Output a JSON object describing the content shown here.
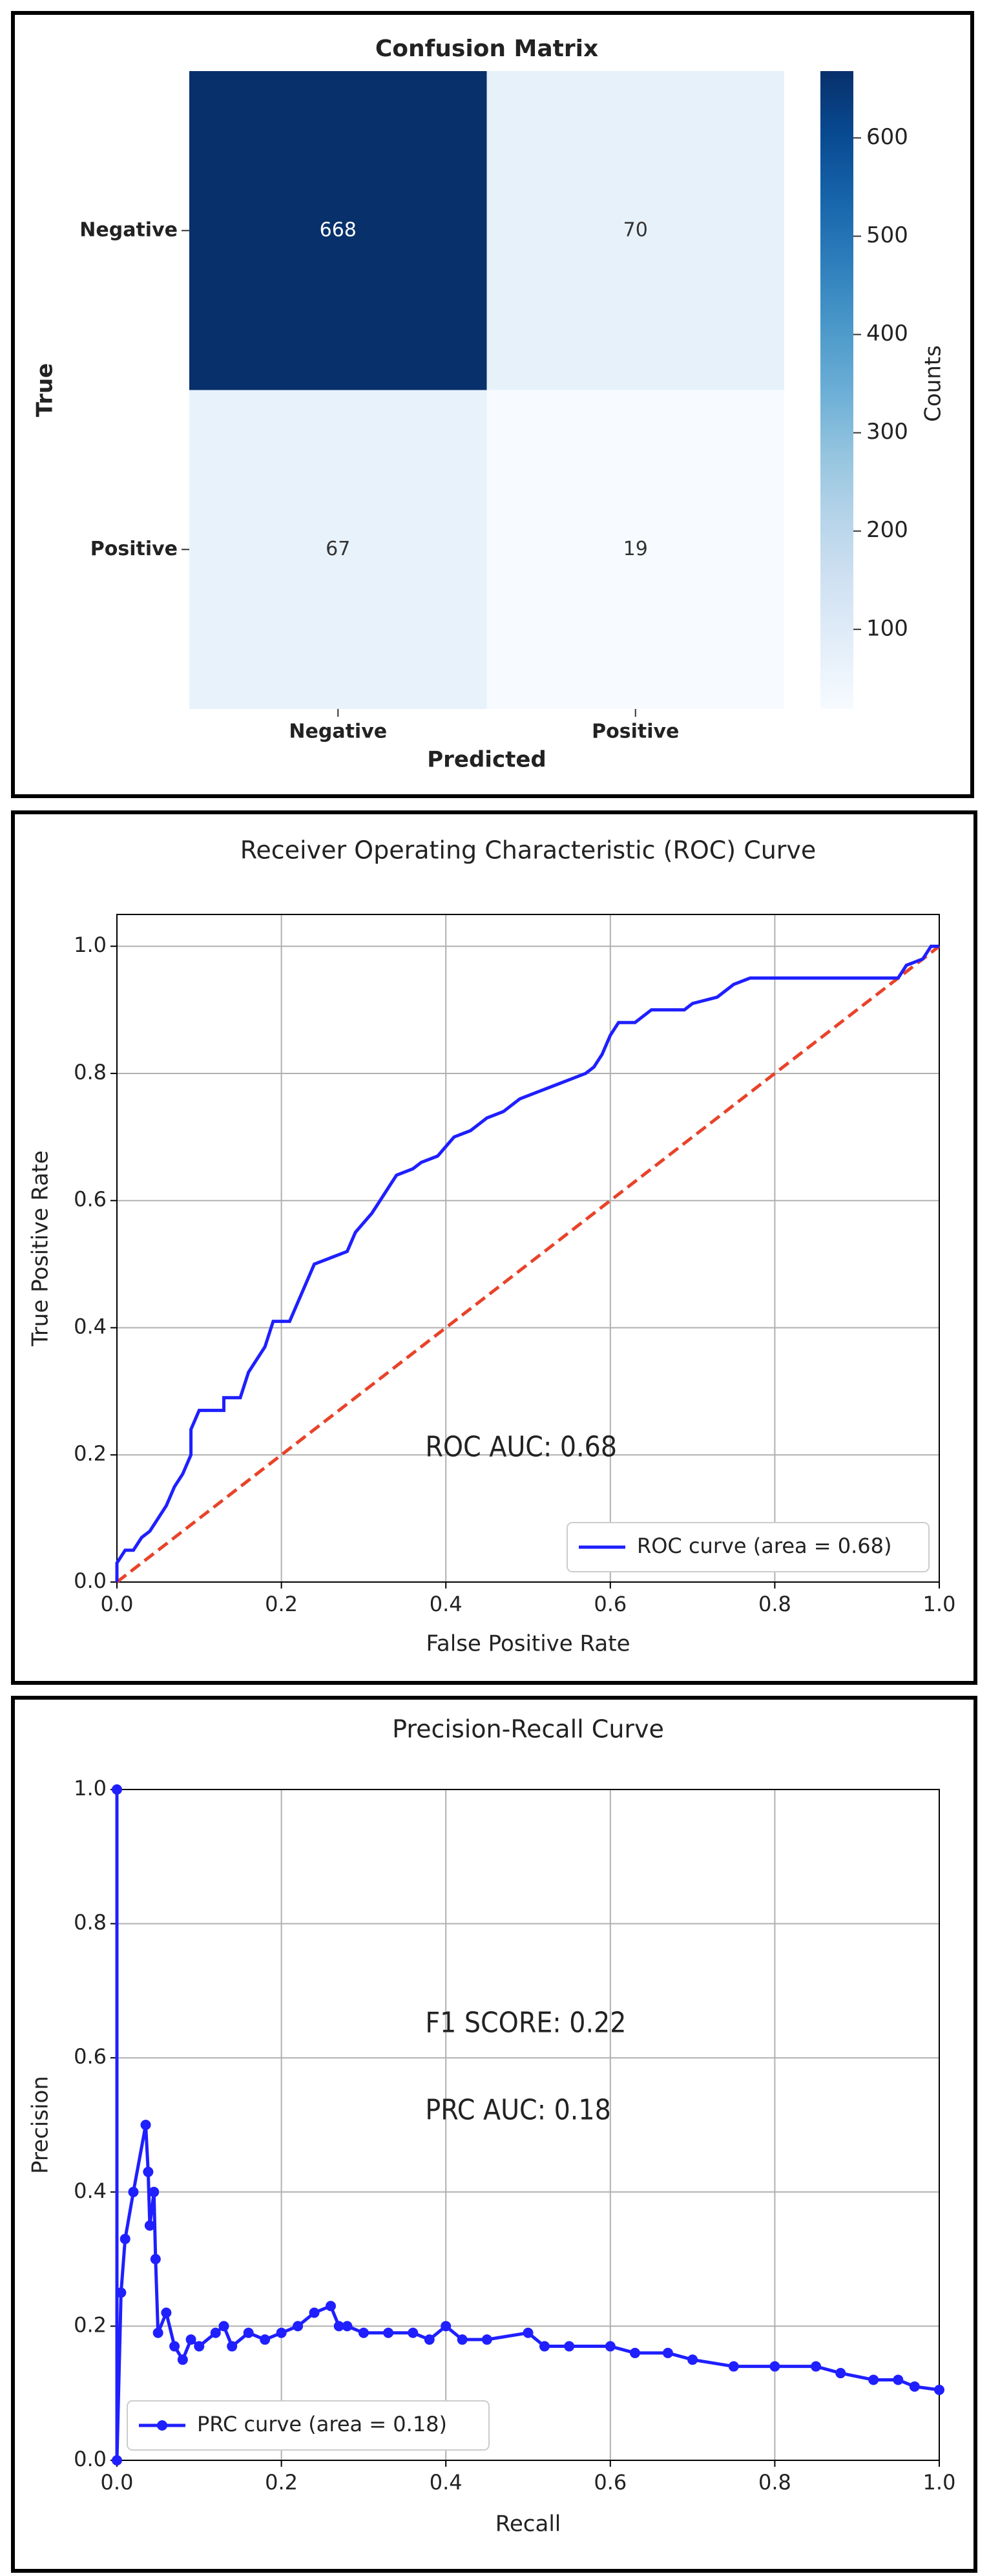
{
  "chart_data": [
    {
      "type": "heatmap",
      "title": "Confusion Matrix",
      "x_label": "Predicted",
      "y_label": "True",
      "x_categories": [
        "Negative",
        "Positive"
      ],
      "y_categories": [
        "Negative",
        "Positive"
      ],
      "values": [
        [
          668,
          70
        ],
        [
          67,
          19
        ]
      ],
      "colormap": "Blues",
      "colorbar_label": "Counts",
      "clim": [
        19,
        668
      ],
      "colorbar_ticks": [
        100,
        200,
        300,
        400,
        500,
        600
      ]
    },
    {
      "type": "line",
      "title": "Receiver Operating Characteristic (ROC) Curve",
      "x_label": "False Positive Rate",
      "y_label": "True Positive Rate",
      "xlim": [
        0,
        1
      ],
      "ylim": [
        0,
        1.05
      ],
      "xticks": [
        {
          "value": 0,
          "label": "0.0"
        },
        0.2,
        0.4,
        0.6,
        0.8,
        {
          "value": 1,
          "label": "1.0"
        }
      ],
      "yticks": [
        {
          "value": 0,
          "label": "0.0"
        },
        0.2,
        0.4,
        0.6,
        0.8,
        {
          "value": 1,
          "label": "1.0"
        }
      ],
      "grid": true,
      "legend": "lower right",
      "markers": false,
      "series": [
        {
          "name": "ROC curve (area = 0.68)",
          "color": "#1f1fff",
          "x": [
            0,
            0,
            0.01,
            0.02,
            0.03,
            0.04,
            0.05,
            0.06,
            0.07,
            0.08,
            0.09,
            0.09,
            0.1,
            0.13,
            0.13,
            0.15,
            0.16,
            0.17,
            0.18,
            0.19,
            0.21,
            0.22,
            0.23,
            0.24,
            0.26,
            0.28,
            0.29,
            0.31,
            0.32,
            0.33,
            0.34,
            0.36,
            0.37,
            0.39,
            0.41,
            0.43,
            0.45,
            0.47,
            0.49,
            0.51,
            0.53,
            0.55,
            0.57,
            0.58,
            0.59,
            0.6,
            0.61,
            0.63,
            0.65,
            0.69,
            0.7,
            0.73,
            0.75,
            0.77,
            0.85,
            0.95,
            0.96,
            0.98,
            0.99,
            1
          ],
          "y": [
            0,
            0.03,
            0.05,
            0.05,
            0.07,
            0.08,
            0.1,
            0.12,
            0.15,
            0.17,
            0.2,
            0.24,
            0.27,
            0.27,
            0.29,
            0.29,
            0.33,
            0.35,
            0.37,
            0.41,
            0.41,
            0.44,
            0.47,
            0.5,
            0.51,
            0.52,
            0.55,
            0.58,
            0.6,
            0.62,
            0.64,
            0.65,
            0.66,
            0.67,
            0.7,
            0.71,
            0.73,
            0.74,
            0.76,
            0.77,
            0.78,
            0.79,
            0.8,
            0.81,
            0.83,
            0.86,
            0.88,
            0.88,
            0.9,
            0.9,
            0.91,
            0.92,
            0.94,
            0.95,
            0.95,
            0.95,
            0.97,
            0.98,
            1,
            1
          ]
        }
      ],
      "reference_line": {
        "x": [
          0,
          1
        ],
        "y": [
          0,
          1
        ],
        "color": "#e8432a"
      },
      "annotations": [
        "ROC AUC: 0.68"
      ]
    },
    {
      "type": "line",
      "title": "Precision-Recall Curve",
      "x_label": "Recall",
      "y_label": "Precision",
      "xlim": [
        0,
        1
      ],
      "ylim": [
        0,
        1.0
      ],
      "xticks": [
        {
          "value": 0,
          "label": "0.0"
        },
        0.2,
        0.4,
        0.6,
        0.8,
        {
          "value": 1,
          "label": "1.0"
        }
      ],
      "yticks": [
        {
          "value": 0,
          "label": "0.0"
        },
        0.2,
        0.4,
        0.6,
        0.8,
        {
          "value": 1,
          "label": "1.0"
        }
      ],
      "grid": true,
      "legend": "lower left",
      "markers": true,
      "series": [
        {
          "name": "PRC curve (area = 0.18)",
          "color": "#1f1fff",
          "x": [
            0,
            0,
            0.005,
            0.01,
            0.02,
            0.035,
            0.038,
            0.04,
            0.045,
            0.047,
            0.05,
            0.06,
            0.07,
            0.08,
            0.09,
            0.1,
            0.12,
            0.13,
            0.14,
            0.16,
            0.18,
            0.2,
            0.22,
            0.24,
            0.26,
            0.27,
            0.28,
            0.3,
            0.33,
            0.36,
            0.38,
            0.4,
            0.42,
            0.45,
            0.5,
            0.52,
            0.55,
            0.6,
            0.63,
            0.67,
            0.7,
            0.75,
            0.8,
            0.85,
            0.88,
            0.92,
            0.95,
            0.97,
            1
          ],
          "y": [
            1,
            0,
            0.25,
            0.33,
            0.4,
            0.5,
            0.43,
            0.35,
            0.4,
            0.3,
            0.19,
            0.22,
            0.17,
            0.15,
            0.18,
            0.17,
            0.19,
            0.2,
            0.17,
            0.19,
            0.18,
            0.19,
            0.2,
            0.22,
            0.23,
            0.2,
            0.2,
            0.19,
            0.19,
            0.19,
            0.18,
            0.2,
            0.18,
            0.18,
            0.19,
            0.17,
            0.17,
            0.17,
            0.16,
            0.16,
            0.15,
            0.14,
            0.14,
            0.14,
            0.13,
            0.12,
            0.12,
            0.11,
            0.105
          ]
        }
      ],
      "annotations": [
        "F1 SCORE: 0.22",
        "PRC AUC: 0.18"
      ]
    }
  ]
}
